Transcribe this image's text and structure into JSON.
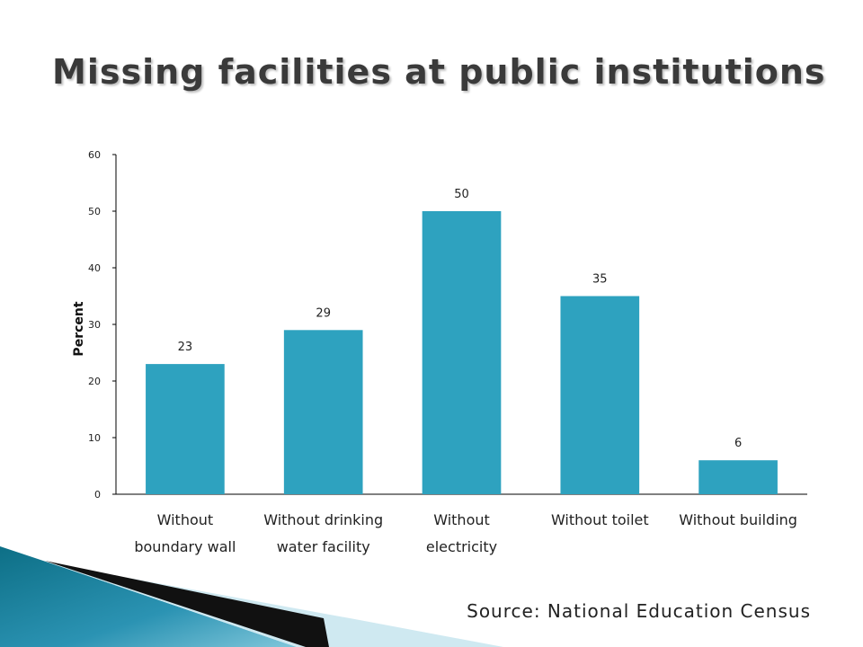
{
  "slide": {
    "title": "Missing facilities at public institutions",
    "source": "Source: National Education Census"
  },
  "colors": {
    "bar": "#2ea2bf",
    "axis": "#000000",
    "corner_dark": "#0d6f86",
    "corner_light": "#7fc6da",
    "arrow": "#111111"
  },
  "chart_data": {
    "type": "bar",
    "title": "",
    "xlabel": "",
    "ylabel": "Percent",
    "ylim": [
      0,
      60
    ],
    "yticks": [
      0,
      10,
      20,
      30,
      40,
      50,
      60
    ],
    "grid": false,
    "categories": [
      [
        "Without",
        "boundary wall"
      ],
      [
        "Without drinking",
        "water facility"
      ],
      [
        "Without",
        "electricity"
      ],
      [
        "Without toilet"
      ],
      [
        "Without building"
      ]
    ],
    "values": [
      23,
      29,
      50,
      35,
      6
    ]
  }
}
